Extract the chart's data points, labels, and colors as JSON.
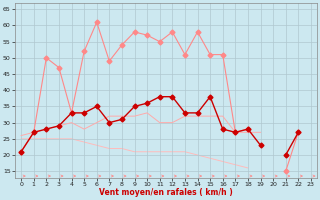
{
  "x": [
    0,
    1,
    2,
    3,
    4,
    5,
    6,
    7,
    8,
    9,
    10,
    11,
    12,
    13,
    14,
    15,
    16,
    17,
    18,
    19,
    20,
    21,
    22,
    23
  ],
  "dark_line": [
    21,
    27,
    28,
    29,
    33,
    33,
    35,
    30,
    31,
    35,
    36,
    38,
    38,
    33,
    33,
    38,
    28,
    27,
    28,
    23,
    null,
    20,
    27,
    null
  ],
  "peak_line": [
    21,
    27,
    50,
    47,
    33,
    52,
    61,
    49,
    54,
    58,
    57,
    55,
    58,
    51,
    58,
    51,
    51,
    27,
    28,
    null,
    null,
    15,
    27,
    null
  ],
  "mid_line": [
    26,
    27,
    28,
    29,
    30,
    28,
    30,
    32,
    32,
    32,
    33,
    30,
    30,
    32,
    32,
    32,
    32,
    27,
    27,
    27,
    null,
    null,
    27,
    null
  ],
  "low_line": [
    25,
    25,
    25,
    25,
    25,
    24,
    23,
    22,
    22,
    21,
    21,
    21,
    21,
    21,
    20,
    19,
    18,
    17,
    16,
    null,
    null,
    15,
    null,
    null
  ],
  "bg_color": "#cce8f0",
  "grid_color": "#b0c8d0",
  "dark_red": "#cc0000",
  "light_red1": "#ff8888",
  "light_red2": "#ffaaaa",
  "light_red3": "#ffbbbb",
  "xlabel": "Vent moyen/en rafales ( km/h )",
  "ylim": [
    13,
    67
  ],
  "xlim": [
    -0.5,
    23.5
  ],
  "yticks": [
    15,
    20,
    25,
    30,
    35,
    40,
    45,
    50,
    55,
    60,
    65
  ],
  "xticks": [
    0,
    1,
    2,
    3,
    4,
    5,
    6,
    7,
    8,
    9,
    10,
    11,
    12,
    13,
    14,
    15,
    16,
    17,
    18,
    19,
    20,
    21,
    22,
    23
  ]
}
